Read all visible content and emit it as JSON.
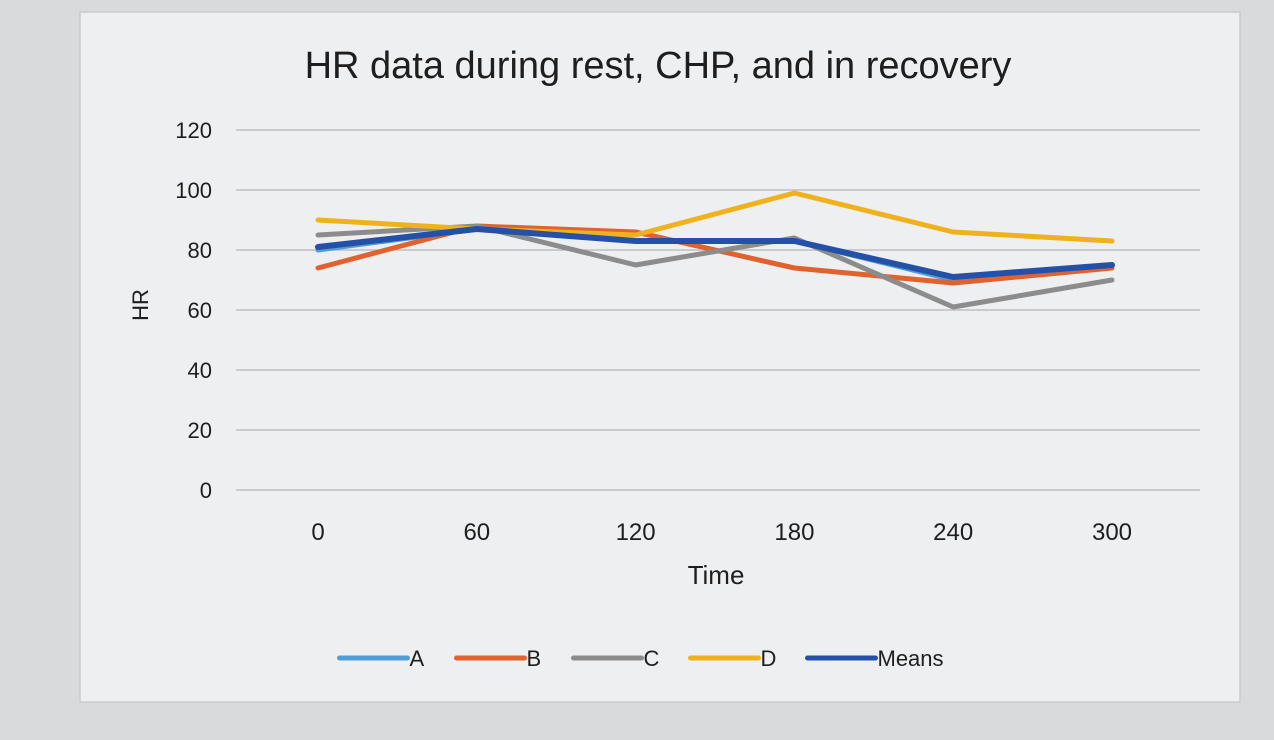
{
  "chart_data": {
    "type": "line",
    "title": "HR data during rest, CHP, and in recovery",
    "xlabel": "Time",
    "ylabel": "HR",
    "x": [
      0,
      60,
      120,
      180,
      240,
      300
    ],
    "x_tick_labels": [
      "0",
      "60",
      "120",
      "180",
      "240",
      "300"
    ],
    "ylim": [
      0,
      120
    ],
    "y_ticks": [
      0,
      20,
      40,
      60,
      80,
      100,
      120
    ],
    "grid": true,
    "legend_position": "bottom",
    "series": [
      {
        "name": "A",
        "color": "#4f9fd6",
        "values": [
          80,
          87,
          83,
          83,
          70,
          75
        ]
      },
      {
        "name": "B",
        "color": "#e0622f",
        "values": [
          74,
          88,
          86,
          74,
          69,
          74
        ]
      },
      {
        "name": "C",
        "color": "#8c8c8c",
        "values": [
          85,
          88,
          75,
          84,
          61,
          70
        ]
      },
      {
        "name": "D",
        "color": "#f0b21c",
        "values": [
          90,
          87,
          85,
          99,
          86,
          83
        ]
      },
      {
        "name": "Means",
        "color": "#2550a8",
        "values": [
          81,
          87,
          83,
          83,
          71,
          75
        ]
      }
    ]
  }
}
